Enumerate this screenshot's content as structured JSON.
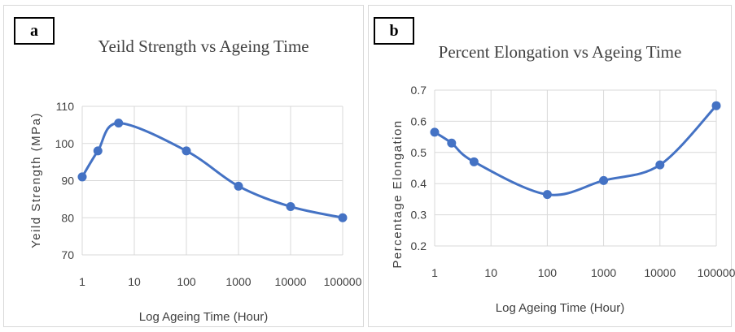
{
  "panels": [
    {
      "id": "a",
      "label": "a",
      "chart_data": {
        "type": "line",
        "title": "Yeild Strength vs Ageing Time",
        "xlabel": "Log Ageing Time  (Hour)",
        "ylabel": "Yeild Strength (MPa)",
        "xscale": "log",
        "x_ticks": [
          "1",
          "10",
          "100",
          "1000",
          "10000",
          "100000"
        ],
        "y_ticks": [
          "70",
          "80",
          "90",
          "100",
          "110"
        ],
        "ylim": [
          70,
          110
        ],
        "grid": true,
        "line_color": "#4472c4",
        "smooth": true,
        "series": [
          {
            "x": [
              1,
              2,
              5,
              100,
              1000,
              10000,
              100000
            ],
            "y": [
              91,
              98,
              105.5,
              98,
              88.5,
              83,
              80
            ]
          }
        ]
      }
    },
    {
      "id": "b",
      "label": "b",
      "chart_data": {
        "type": "line",
        "title": "Percent Elongation vs Ageing Time",
        "xlabel": "Log Ageing Time  (Hour)",
        "ylabel": "Percentage Elongation",
        "xscale": "log",
        "x_ticks": [
          "1",
          "10",
          "100",
          "1000",
          "10000",
          "100000"
        ],
        "y_ticks": [
          "0.2",
          "0.3",
          "0.4",
          "0.5",
          "0.6",
          "0.7"
        ],
        "ylim": [
          0.2,
          0.7
        ],
        "grid": true,
        "line_color": "#4472c4",
        "smooth": true,
        "series": [
          {
            "x": [
              1,
              2,
              5,
              100,
              1000,
              10000,
              100000
            ],
            "y": [
              0.565,
              0.53,
              0.47,
              0.365,
              0.41,
              0.46,
              0.65
            ]
          }
        ]
      }
    }
  ]
}
